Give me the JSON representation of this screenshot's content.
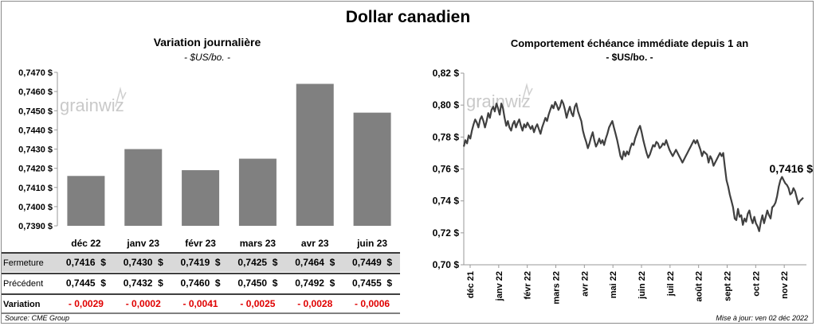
{
  "title": "Dollar canadien",
  "footer": {
    "source": "Source: CME Group",
    "updated": "Mise à jour: ven 02 déc 2022"
  },
  "watermark": "grainwiz",
  "colors": {
    "bar": "#808080",
    "line": "#404040",
    "negative": "#e00000",
    "shade": "#d9d9d9"
  },
  "chart_data": [
    {
      "type": "bar",
      "title": "Variation  journalière",
      "subtitle": "- $US/bo. -",
      "categories": [
        "déc 22",
        "janv 23",
        "févr 23",
        "mars 23",
        "avr 23",
        "juin 23"
      ],
      "values": [
        0.7416,
        0.743,
        0.7419,
        0.7425,
        0.7464,
        0.7449
      ],
      "ylim": [
        0.739,
        0.747
      ],
      "yticks": [
        "0,7470 $",
        "0,7460 $",
        "0,7450 $",
        "0,7440 $",
        "0,7430 $",
        "0,7420 $",
        "0,7410 $",
        "0,7400 $",
        "0,7390 $"
      ],
      "table": {
        "rows": [
          {
            "label": "Fermeture",
            "cells": [
              "0,7416  $",
              "0,7430  $",
              "0,7419  $",
              "0,7425  $",
              "0,7464  $",
              "0,7449  $"
            ]
          },
          {
            "label": "Précédent",
            "cells": [
              "0,7445  $",
              "0,7432  $",
              "0,7460  $",
              "0,7450  $",
              "0,7492  $",
              "0,7455  $"
            ]
          },
          {
            "label": "Variation",
            "cells": [
              "- 0,0029",
              "- 0,0002",
              "- 0,0041",
              "- 0,0025",
              "- 0,0028",
              "- 0,0006"
            ]
          }
        ]
      }
    },
    {
      "type": "line",
      "title": "Comportement échéance immédiate depuis 1 an",
      "subtitle": "- $US/bo. -",
      "ylim": [
        0.7,
        0.82
      ],
      "yticks": [
        "0,82 $",
        "0,80 $",
        "0,78 $",
        "0,76 $",
        "0,74 $",
        "0,72 $",
        "0,70 $"
      ],
      "xticks": [
        "déc 21",
        "janv 22",
        "févr 22",
        "mars 22",
        "avr 22",
        "mai 22",
        "juin 22",
        "juil 22",
        "août 22",
        "sept 22",
        "oct 22",
        "nov 22"
      ],
      "last_value_label": "0,7416 $",
      "series": [
        {
          "values": [
            0.774,
            0.778,
            0.776,
            0.781,
            0.779,
            0.784,
            0.788,
            0.791,
            0.789,
            0.786,
            0.791,
            0.793,
            0.79,
            0.786,
            0.79,
            0.795,
            0.792,
            0.797,
            0.799,
            0.796,
            0.801,
            0.798,
            0.794,
            0.801,
            0.798,
            0.792,
            0.787,
            0.79,
            0.786,
            0.784,
            0.788,
            0.79,
            0.786,
            0.789,
            0.791,
            0.787,
            0.784,
            0.788,
            0.786,
            0.789,
            0.787,
            0.785,
            0.787,
            0.783,
            0.786,
            0.788,
            0.785,
            0.782,
            0.786,
            0.789,
            0.792,
            0.79,
            0.794,
            0.797,
            0.8,
            0.798,
            0.802,
            0.8,
            0.797,
            0.799,
            0.803,
            0.801,
            0.797,
            0.792,
            0.796,
            0.799,
            0.795,
            0.793,
            0.799,
            0.801,
            0.796,
            0.793,
            0.79,
            0.784,
            0.78,
            0.777,
            0.773,
            0.776,
            0.78,
            0.783,
            0.778,
            0.774,
            0.776,
            0.779,
            0.776,
            0.778,
            0.775,
            0.779,
            0.782,
            0.786,
            0.788,
            0.79,
            0.786,
            0.782,
            0.778,
            0.773,
            0.768,
            0.766,
            0.771,
            0.768,
            0.771,
            0.769,
            0.773,
            0.776,
            0.775,
            0.779,
            0.782,
            0.785,
            0.787,
            0.783,
            0.778,
            0.774,
            0.77,
            0.767,
            0.769,
            0.772,
            0.775,
            0.774,
            0.777,
            0.776,
            0.773,
            0.774,
            0.776,
            0.775,
            0.778,
            0.775,
            0.772,
            0.77,
            0.768,
            0.77,
            0.772,
            0.77,
            0.768,
            0.766,
            0.764,
            0.766,
            0.768,
            0.77,
            0.772,
            0.774,
            0.776,
            0.778,
            0.776,
            0.778,
            0.775,
            0.772,
            0.768,
            0.771,
            0.77,
            0.769,
            0.764,
            0.768,
            0.766,
            0.762,
            0.764,
            0.766,
            0.768,
            0.77,
            0.768,
            0.77,
            0.761,
            0.753,
            0.749,
            0.744,
            0.74,
            0.736,
            0.729,
            0.728,
            0.735,
            0.73,
            0.731,
            0.725,
            0.729,
            0.727,
            0.732,
            0.734,
            0.729,
            0.726,
            0.73,
            0.726,
            0.724,
            0.721,
            0.727,
            0.731,
            0.726,
            0.73,
            0.734,
            0.731,
            0.729,
            0.736,
            0.737,
            0.739,
            0.743,
            0.749,
            0.753,
            0.755,
            0.753,
            0.751,
            0.75,
            0.748,
            0.744,
            0.745,
            0.748,
            0.746,
            0.742,
            0.738,
            0.74,
            0.741,
            0.742
          ]
        }
      ]
    }
  ]
}
